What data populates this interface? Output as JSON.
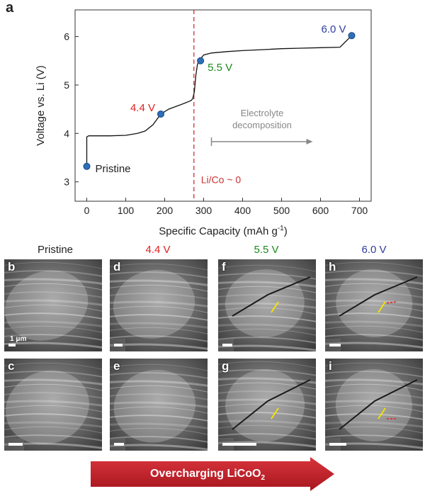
{
  "panel_a": {
    "letter": "a"
  },
  "chart_data": {
    "type": "line",
    "title": "",
    "xlabel": "Specific Capacity (mAh g",
    "xlabel_sup": "-1",
    "xlabel_end": ")",
    "ylabel": "Voltage vs. Li (V)",
    "xlim": [
      -30,
      730
    ],
    "ylim": [
      2.6,
      6.55
    ],
    "xticks": [
      0,
      100,
      200,
      300,
      400,
      500,
      600,
      700
    ],
    "yticks": [
      3,
      4,
      5,
      6
    ],
    "grid": false,
    "series": [
      {
        "x": [
          0,
          0,
          5,
          20,
          60,
          100,
          130,
          150,
          170,
          190,
          210,
          230,
          250,
          262,
          268,
          272,
          276,
          280,
          284,
          288,
          292,
          296,
          300,
          320,
          360,
          400,
          450,
          500,
          550,
          600,
          650,
          680
        ],
        "y": [
          3.32,
          3.93,
          3.95,
          3.95,
          3.95,
          3.96,
          4.0,
          4.05,
          4.18,
          4.4,
          4.5,
          4.56,
          4.62,
          4.66,
          4.68,
          4.72,
          4.85,
          5.2,
          5.42,
          5.5,
          5.55,
          5.58,
          5.62,
          5.66,
          5.69,
          5.71,
          5.73,
          5.75,
          5.76,
          5.77,
          5.78,
          6.02
        ],
        "color": "#111111"
      }
    ],
    "markers": [
      {
        "x": 0,
        "y": 3.32,
        "label": "Pristine",
        "color": "#222222"
      },
      {
        "x": 190,
        "y": 4.4,
        "label": "4.4 V",
        "color": "#e02020"
      },
      {
        "x": 292,
        "y": 5.5,
        "label": "5.5 V",
        "color": "#1a8a1a"
      },
      {
        "x": 680,
        "y": 6.02,
        "label": "6.0 V",
        "color": "#2f3c9e"
      }
    ],
    "vline": {
      "x": 275,
      "label": "Li/Co ~ 0",
      "color": "#d03030"
    },
    "annotation": {
      "text_line1": "Electrolyte",
      "text_line2": "decomposition",
      "arrow_from_x": 320,
      "arrow_to_x": 580,
      "arrow_y": 3.83,
      "color": "#888888"
    }
  },
  "columns": [
    {
      "title": "Pristine",
      "color": "#222222"
    },
    {
      "title": "4.4 V",
      "color": "#e02020"
    },
    {
      "title": "5.5 V",
      "color": "#1a8a1a"
    },
    {
      "title": "6.0 V",
      "color": "#2f3c9e"
    }
  ],
  "sem_panels": [
    {
      "letter": "b",
      "scale_text": "1 μm"
    },
    {
      "letter": "d",
      "scale_text": ""
    },
    {
      "letter": "f",
      "scale_text": ""
    },
    {
      "letter": "h",
      "scale_text": ""
    },
    {
      "letter": "c",
      "scale_text": ""
    },
    {
      "letter": "e",
      "scale_text": ""
    },
    {
      "letter": "g",
      "scale_text": ""
    },
    {
      "letter": "i",
      "scale_text": ""
    }
  ],
  "banner": {
    "text": "Overcharging LiCoO",
    "sub": "2",
    "color": "#c0202a"
  }
}
